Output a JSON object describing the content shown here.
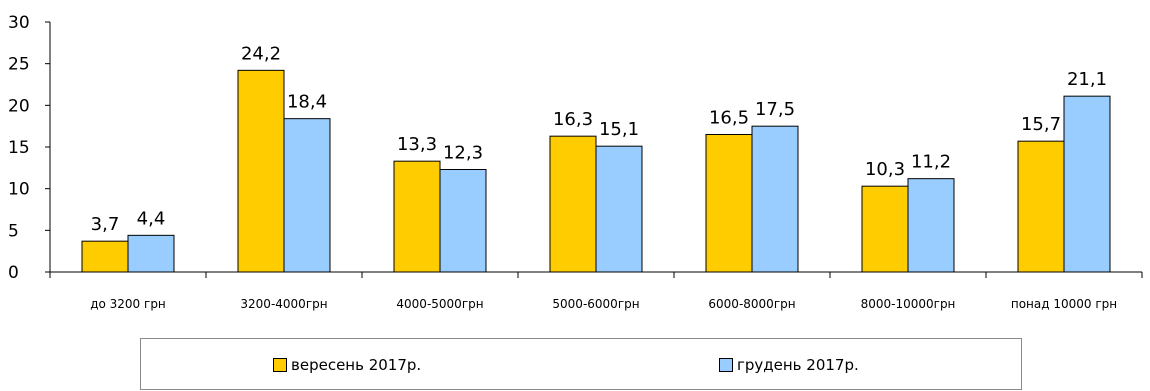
{
  "chart_data": {
    "type": "bar",
    "categories": [
      "до 3200 грн",
      "3200-4000грн",
      "4000-5000грн",
      "5000-6000грн",
      "6000-8000грн",
      "8000-10000грн",
      "понад 10000 грн"
    ],
    "series": [
      {
        "name": "вересень 2017р.",
        "values": [
          3.7,
          24.2,
          13.3,
          16.3,
          16.5,
          10.3,
          15.7
        ],
        "labels": [
          "3,7",
          "24,2",
          "13,3",
          "16,3",
          "16,5",
          "10,3",
          "15,7"
        ],
        "color": "#FFCC00"
      },
      {
        "name": "грудень 2017р.",
        "values": [
          4.4,
          18.4,
          12.3,
          15.1,
          17.5,
          11.2,
          21.1
        ],
        "labels": [
          "4,4",
          "18,4",
          "12,3",
          "15,1",
          "17,5",
          "11,2",
          "21,1"
        ],
        "color": "#99CCFF"
      }
    ],
    "ylim": [
      0,
      30
    ],
    "yticks": [
      "0",
      "5",
      "10",
      "15",
      "20",
      "25",
      "30"
    ],
    "ytick_values": [
      0,
      5,
      10,
      15,
      20,
      25,
      30
    ],
    "grid": false,
    "legend_position": "bottom",
    "title": "",
    "xlabel": "",
    "ylabel": ""
  }
}
